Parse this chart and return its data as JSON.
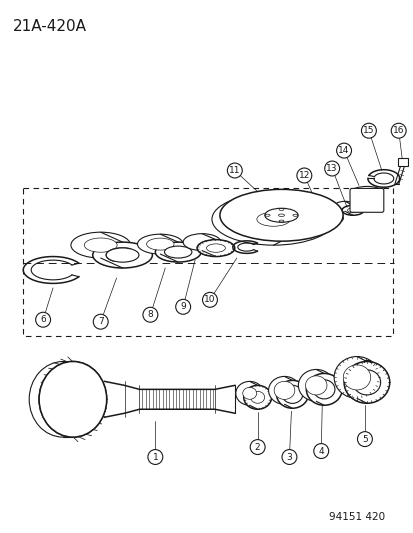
{
  "title": "21A-420A",
  "footer": "94151 420",
  "bg_color": "#ffffff",
  "line_color": "#1a1a1a",
  "label_color": "#1a1a1a",
  "title_fontsize": 11,
  "footer_fontsize": 7.5,
  "label_fontsize": 6.5
}
